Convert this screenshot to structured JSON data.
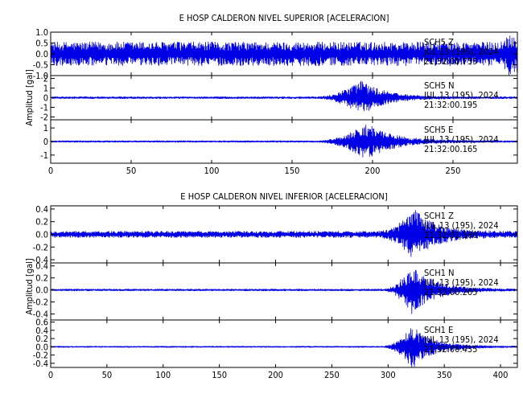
{
  "chart_data": [
    {
      "type": "line",
      "title": "E HOSP CALDERON NIVEL SUPERIOR [ACELERACION]",
      "ylabel": "Amplitud [gal]",
      "xlim": [
        0,
        290
      ],
      "xticks": [
        0,
        50,
        100,
        150,
        200,
        250
      ],
      "series": [
        {
          "name": "SCH5 Z",
          "annotation": [
            "SCH5   Z",
            "JUL 13 (195), 2024",
            "21:32:00.755"
          ],
          "ylim": [
            -1.0,
            1.0
          ],
          "yticks": [
            "1.0",
            "0.5",
            "0.0",
            "-0.5",
            "-1.0"
          ],
          "ytick_values": [
            1.0,
            0.5,
            0.0,
            -0.5,
            -1.0
          ],
          "envelope": {
            "baseline": 0.55,
            "onset": 278,
            "peak_time": 285,
            "peak": 1.0,
            "decay": 12
          }
        },
        {
          "name": "SCH5 N",
          "annotation": [
            "SCH5   N",
            "JUL 13 (195), 2024",
            "21:32:00.195"
          ],
          "ylim": [
            -2.3,
            2.3
          ],
          "yticks": [
            "2",
            "1",
            "0",
            "-1",
            "-2"
          ],
          "ytick_values": [
            2,
            1,
            0,
            -1,
            -2
          ],
          "envelope": {
            "baseline": 0.1,
            "onset": 165,
            "peak_time": 193,
            "peak": 1.9,
            "decay": 14
          }
        },
        {
          "name": "SCH5 E",
          "annotation": [
            "SCH5   E",
            "JUL 13 (195), 2024",
            "21:32:00.165"
          ],
          "ylim": [
            -1.6,
            1.6
          ],
          "yticks": [
            "1",
            "0",
            "-1"
          ],
          "ytick_values": [
            1,
            0,
            -1
          ],
          "envelope": {
            "baseline": 0.06,
            "onset": 165,
            "peak_time": 196,
            "peak": 1.4,
            "decay": 16
          }
        }
      ]
    },
    {
      "type": "line",
      "title": "E HOSP CALDERON NIVEL INFERIOR [ACELERACION]",
      "ylabel": "Amplitud [gal]",
      "xlim": [
        0,
        415
      ],
      "xticks": [
        0,
        50,
        100,
        150,
        200,
        250,
        300,
        350,
        400
      ],
      "series": [
        {
          "name": "SCH1 Z",
          "annotation": [
            "SCH1   Z",
            "JUL 13 (195), 2024",
            "21:32:01.560"
          ],
          "ylim": [
            -0.45,
            0.45
          ],
          "yticks": [
            "0.4",
            "0.2",
            "0.0",
            "-0.2",
            "-0.4"
          ],
          "ytick_values": [
            0.4,
            0.2,
            0.0,
            -0.2,
            -0.4
          ],
          "envelope": {
            "baseline": 0.05,
            "onset": 290,
            "peak_time": 323,
            "peak": 0.42,
            "decay": 18
          }
        },
        {
          "name": "SCH1 N",
          "annotation": [
            "SCH1   N",
            "JUL 13 (195), 2024",
            "21:32:00.265"
          ],
          "ylim": [
            -0.5,
            0.45
          ],
          "yticks": [
            "0.4",
            "0.2",
            "0.0",
            "-0.2",
            "-0.4"
          ],
          "ytick_values": [
            0.4,
            0.2,
            0.0,
            -0.2,
            -0.4
          ],
          "envelope": {
            "baseline": 0.015,
            "onset": 295,
            "peak_time": 321,
            "peak": 0.42,
            "decay": 20
          }
        },
        {
          "name": "SCH1 E",
          "annotation": [
            "SCH1   E",
            "JUL 13 (195), 2024",
            "21:32:00.435"
          ],
          "ylim": [
            -0.5,
            0.65
          ],
          "yticks": [
            "0.6",
            "0.4",
            "0.2",
            "0.0",
            "-0.2",
            "-0.4"
          ],
          "ytick_values": [
            0.6,
            0.4,
            0.2,
            0.0,
            -0.2,
            -0.4
          ],
          "envelope": {
            "baseline": 0.015,
            "onset": 295,
            "peak_time": 321,
            "peak": 0.55,
            "decay": 18
          }
        }
      ]
    }
  ],
  "style": {
    "trace_color": "#0000e6",
    "axis_color": "#000000",
    "background": "#ffffff"
  }
}
